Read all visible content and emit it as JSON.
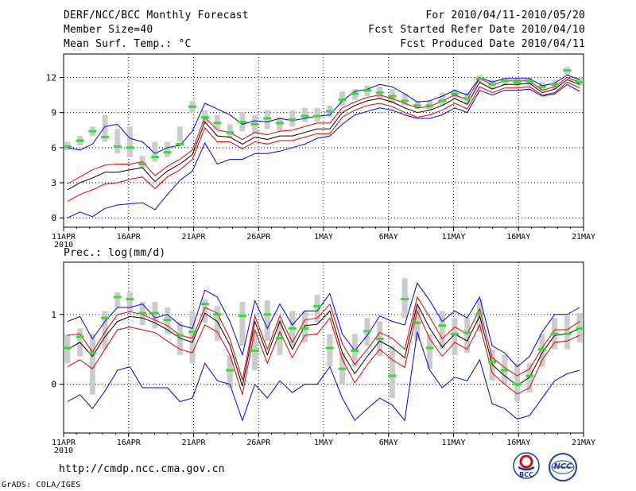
{
  "header": {
    "title": "DERF/NCC/BCC Monthly Forecast",
    "member_size": "Member Size=40",
    "variable": "Mean Surf. Temp.: °C",
    "period": "For 2010/04/11-2010/05/20",
    "fcst_started": "Fcst Started Refer Date 2010/04/10",
    "fcst_produced": "Fcst Produced Date 2010/04/11"
  },
  "precip_label": "Prec.: log(mm/d)",
  "footer": {
    "url": "http://cmdp.ncc.cma.gov.cn",
    "credit": "GrADS: COLA/IGES",
    "logo_text": "BCC",
    "logo2_text": "NCC"
  },
  "colors": {
    "mean": "#000000",
    "spread": "#e00000",
    "minmax": "#0000e0",
    "box": "#cccccc",
    "member_marker": "#33dd33",
    "grid": "#000000"
  },
  "chart_data": [
    {
      "type": "line",
      "title": "Mean Surf. Temp.: °C",
      "x_tick_labels": [
        "11APR",
        "16APR",
        "21APR",
        "26APR",
        "1MAY",
        "6MAY",
        "11MAY",
        "16MAY",
        "21MAY"
      ],
      "x_year_label": "2010",
      "x_range": [
        0,
        40
      ],
      "ylim": [
        -0.8,
        14
      ],
      "y_ticks": [
        0,
        3,
        6,
        9,
        12
      ],
      "series": [
        {
          "name": "max",
          "color": "#0000e0",
          "values": [
            6,
            5.8,
            6.3,
            7.8,
            8,
            6.8,
            6.5,
            5.5,
            6,
            6.2,
            7.4,
            9.8,
            9.3,
            8.8,
            8,
            8.3,
            8.2,
            8.5,
            8.3,
            8.5,
            8.7,
            8.8,
            10,
            10.8,
            11,
            11.4,
            11.2,
            10.6,
            9.9,
            10,
            10.4,
            10.9,
            10.5,
            12,
            11.6,
            11.9,
            11.9,
            11.9,
            11.3,
            11.5,
            12.2,
            11.8
          ]
        },
        {
          "name": "upper",
          "color": "#e00000",
          "values": [
            2.9,
            3.5,
            4.1,
            4.5,
            4.6,
            4.6,
            4.8,
            3.6,
            4.4,
            5,
            5.8,
            8.6,
            7.5,
            7.3,
            6.7,
            7.3,
            7.1,
            7.4,
            7.5,
            7.8,
            8.1,
            8.1,
            9.4,
            9.9,
            10.3,
            10.5,
            10.2,
            9.8,
            9.4,
            9.5,
            10,
            10.5,
            10.1,
            11.9,
            11.4,
            11.7,
            11.7,
            11.7,
            10.9,
            11.2,
            12,
            11.6
          ]
        },
        {
          "name": "mean",
          "color": "#000000",
          "values": [
            2.4,
            3,
            3.4,
            3.9,
            3.9,
            4.1,
            4.3,
            3.1,
            4,
            4.6,
            5.4,
            8.2,
            7,
            6.9,
            6.3,
            6.9,
            6.7,
            7,
            7,
            7.3,
            7.6,
            7.6,
            9,
            9.6,
            10,
            10.2,
            9.9,
            9.4,
            9,
            9.2,
            9.6,
            10.2,
            9.7,
            11.6,
            11,
            11.4,
            11.4,
            11.5,
            10.7,
            11,
            11.8,
            11.4
          ]
        },
        {
          "name": "lower",
          "color": "#e00000",
          "values": [
            1.4,
            2,
            2.4,
            2.9,
            3,
            3.3,
            3.5,
            2.5,
            3.5,
            4.1,
            5,
            7.7,
            6.5,
            6.5,
            5.9,
            6.5,
            6.3,
            6.6,
            6.6,
            6.9,
            7.2,
            7.2,
            8.6,
            9.2,
            9.6,
            9.8,
            9.5,
            9,
            8.6,
            8.8,
            9.2,
            9.8,
            9.3,
            11.2,
            10.7,
            11.1,
            11.1,
            11.2,
            10.5,
            10.7,
            11.6,
            11.1
          ]
        },
        {
          "name": "min",
          "color": "#0000e0",
          "values": [
            0,
            0.5,
            0.1,
            0.8,
            1.1,
            1.2,
            1.3,
            0.7,
            2,
            3.2,
            4,
            6.4,
            4.6,
            5,
            5,
            5.5,
            5.5,
            5.7,
            6,
            6.3,
            6.8,
            7,
            8,
            8.8,
            9.1,
            9.4,
            9.2,
            8.8,
            8.5,
            8.5,
            8.8,
            9.4,
            9,
            10.9,
            10.5,
            10.9,
            10.9,
            11,
            10.4,
            10.6,
            11.4,
            10.8
          ]
        }
      ],
      "members_marker": [
        6.1,
        6.6,
        7.4,
        6.9,
        6.1,
        6,
        4.6,
        5.2,
        5.6,
        6.3,
        9.5,
        8.6,
        8.1,
        7.3,
        8.2,
        8,
        8.5,
        8.1,
        8.4,
        8.7,
        8.7,
        9.1,
        10.1,
        10.6,
        10.9,
        10.7,
        10.4,
        10,
        9.6,
        9.6,
        10,
        10.6,
        10.2,
        11.9,
        11.4,
        11.7,
        11.6,
        11.7,
        11.2,
        11.4,
        12.6,
        11.6
      ],
      "box_ranges": [
        [
          5.8,
          6.5
        ],
        [
          6.2,
          7
        ],
        [
          7,
          7.8
        ],
        [
          6.5,
          8.8
        ],
        [
          5.5,
          7.6
        ],
        [
          5.2,
          7.8
        ],
        [
          4.2,
          5.3
        ],
        [
          4.8,
          6.5
        ],
        [
          5.2,
          6.5
        ],
        [
          6.5,
          7.8
        ],
        [
          9,
          10
        ],
        [
          8,
          9.2
        ],
        [
          7.6,
          8.8
        ],
        [
          6.8,
          8
        ],
        [
          7.4,
          9
        ],
        [
          7.2,
          8.8
        ],
        [
          7.6,
          9.2
        ],
        [
          7.4,
          8.6
        ],
        [
          7.8,
          9.2
        ],
        [
          8.2,
          9.4
        ],
        [
          8.2,
          9.4
        ],
        [
          8.6,
          9.6
        ],
        [
          9.6,
          10.8
        ],
        [
          10.1,
          11
        ],
        [
          10.4,
          11.3
        ],
        [
          10.2,
          11.2
        ],
        [
          9.8,
          11
        ],
        [
          9.6,
          10.6
        ],
        [
          9.3,
          10
        ],
        [
          9.2,
          10
        ],
        [
          9.6,
          10.7
        ],
        [
          10.2,
          11
        ],
        [
          9.8,
          10.7
        ],
        [
          11.6,
          12.2
        ],
        [
          11,
          11.8
        ],
        [
          11.3,
          12
        ],
        [
          11.2,
          12
        ],
        [
          11.3,
          12
        ],
        [
          10.9,
          11.6
        ],
        [
          11,
          11.8
        ],
        [
          12.2,
          12.9
        ],
        [
          11.3,
          12
        ]
      ]
    },
    {
      "type": "line",
      "title": "Prec.: log(mm/d)",
      "x_tick_labels": [
        "11APR",
        "16APR",
        "21APR",
        "26APR",
        "1MAY",
        "6MAY",
        "11MAY",
        "16MAY",
        "21MAY"
      ],
      "x_year_label": "2010",
      "x_range": [
        0,
        40
      ],
      "ylim": [
        -0.7,
        1.75
      ],
      "y_ticks": [
        0,
        1
      ],
      "series": [
        {
          "name": "max",
          "color": "#0000e0",
          "values": [
            0.9,
            0.97,
            0.65,
            0.9,
            1.1,
            1.1,
            1.15,
            0.95,
            1.0,
            0.85,
            0.8,
            1.35,
            1.25,
            0.9,
            0.42,
            1.2,
            0.8,
            1.15,
            0.85,
            1.05,
            1.05,
            1.3,
            0.72,
            0.48,
            0.7,
            0.98,
            0.9,
            0.85,
            1.45,
            1.2,
            0.9,
            1.05,
            0.95,
            1.25,
            0.55,
            0.45,
            0.25,
            0.4,
            0.75,
            1.0,
            1.0,
            1.1
          ]
        },
        {
          "name": "upper",
          "color": "#e00000",
          "values": [
            0.7,
            0.72,
            0.46,
            0.75,
            1.0,
            1.04,
            1.0,
            0.92,
            0.84,
            0.7,
            0.66,
            1.1,
            1.02,
            0.65,
            0.06,
            0.98,
            0.5,
            0.98,
            0.6,
            0.92,
            0.95,
            1.15,
            0.58,
            0.28,
            0.5,
            0.74,
            0.66,
            0.5,
            1.25,
            0.96,
            0.65,
            0.82,
            0.72,
            1.08,
            0.38,
            0.24,
            0.12,
            0.22,
            0.52,
            0.78,
            0.78,
            0.9
          ]
        },
        {
          "name": "mean",
          "color": "#000000",
          "values": [
            0.5,
            0.6,
            0.4,
            0.68,
            0.9,
            0.97,
            0.95,
            0.88,
            0.78,
            0.66,
            0.6,
            1.02,
            0.9,
            0.56,
            -0.03,
            0.9,
            0.42,
            0.9,
            0.5,
            0.84,
            0.86,
            1.05,
            0.45,
            0.15,
            0.4,
            0.62,
            0.52,
            0.38,
            1.15,
            0.8,
            0.53,
            0.72,
            0.62,
            0.98,
            0.28,
            0.12,
            -0.02,
            0.1,
            0.45,
            0.7,
            0.72,
            0.8
          ]
        },
        {
          "name": "lower",
          "color": "#e00000",
          "values": [
            0.25,
            0.35,
            0.22,
            0.5,
            0.78,
            0.82,
            0.78,
            0.74,
            0.62,
            0.5,
            0.45,
            0.85,
            0.75,
            0.42,
            -0.15,
            0.78,
            0.3,
            0.75,
            0.38,
            0.7,
            0.72,
            0.95,
            0.36,
            0.02,
            0.28,
            0.5,
            0.35,
            0.24,
            1.05,
            0.65,
            0.4,
            0.6,
            0.5,
            0.85,
            0.16,
            0.0,
            -0.14,
            -0.05,
            0.35,
            0.6,
            0.62,
            0.7
          ]
        },
        {
          "name": "min",
          "color": "#0000e0",
          "values": [
            -0.25,
            -0.15,
            -0.35,
            -0.1,
            0.2,
            0.25,
            -0.05,
            -0.05,
            -0.05,
            -0.25,
            -0.2,
            0.3,
            0.05,
            0.0,
            -0.52,
            0.0,
            -0.2,
            0.05,
            -0.12,
            0.0,
            0.0,
            0.25,
            -0.2,
            -0.52,
            -0.35,
            -0.2,
            -0.3,
            -0.52,
            0.75,
            0.2,
            -0.05,
            0.1,
            0.05,
            0.35,
            -0.28,
            -0.35,
            -0.5,
            -0.45,
            -0.2,
            0.05,
            0.15,
            0.2
          ]
        }
      ],
      "members_marker": [
        0.52,
        0.68,
        0.45,
        0.95,
        1.25,
        1.22,
        1.02,
        1.02,
        0.92,
        0.7,
        0.75,
        1.15,
        1.0,
        0.2,
        0.98,
        0.48,
        1.0,
        0.66,
        0.8,
        0.8,
        1.12,
        0.52,
        0.22,
        0.48,
        0.76,
        0.65,
        0.12,
        1.22,
        0.88,
        0.52,
        0.84,
        0.72,
        0.74,
        1.01,
        0.32,
        0.2,
        0.0,
        0.12,
        0.5,
        0.72,
        0.72,
        0.8
      ],
      "box_ranges": [
        [
          0.3,
          0.72
        ],
        [
          0.4,
          0.8
        ],
        [
          -0.15,
          0.72
        ],
        [
          0.5,
          1.05
        ],
        [
          1.1,
          1.32
        ],
        [
          1.05,
          1.32
        ],
        [
          0.85,
          1.18
        ],
        [
          0.8,
          1.18
        ],
        [
          0.72,
          1.1
        ],
        [
          0.42,
          0.9
        ],
        [
          0.3,
          1.05
        ],
        [
          0.88,
          1.22
        ],
        [
          0.62,
          1.12
        ],
        [
          -0.05,
          0.42
        ],
        [
          0.55,
          1.18
        ],
        [
          0.2,
          0.75
        ],
        [
          0.62,
          1.2
        ],
        [
          0.42,
          0.92
        ],
        [
          0.55,
          1.05
        ],
        [
          0.6,
          1.05
        ],
        [
          0.88,
          1.28
        ],
        [
          0.25,
          0.72
        ],
        [
          0.0,
          0.45
        ],
        [
          0.25,
          0.72
        ],
        [
          0.55,
          0.95
        ],
        [
          0.4,
          0.9
        ],
        [
          -0.2,
          0.55
        ],
        [
          0.95,
          1.52
        ],
        [
          0.62,
          1.12
        ],
        [
          0.22,
          0.72
        ],
        [
          0.5,
          1.05
        ],
        [
          0.42,
          0.95
        ],
        [
          0.45,
          0.95
        ],
        [
          0.75,
          1.22
        ],
        [
          0.05,
          0.5
        ],
        [
          0.0,
          0.42
        ],
        [
          -0.25,
          0.3
        ],
        [
          -0.12,
          0.3
        ],
        [
          0.25,
          0.72
        ],
        [
          0.5,
          0.95
        ],
        [
          0.5,
          0.98
        ],
        [
          0.6,
          1.02
        ]
      ]
    }
  ]
}
